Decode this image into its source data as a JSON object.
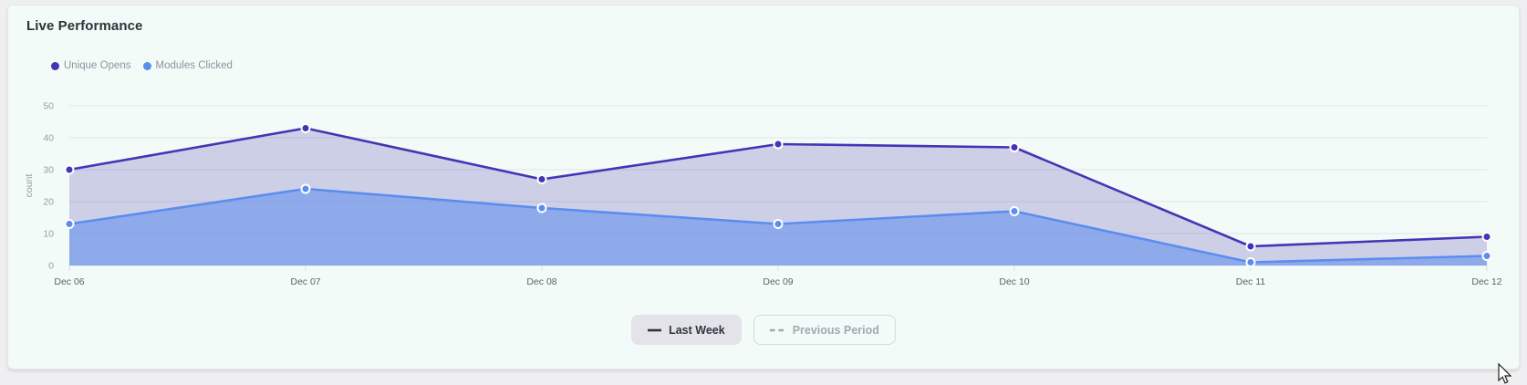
{
  "card": {
    "title": "Live Performance"
  },
  "chart_data": {
    "type": "area",
    "title": "Live Performance",
    "x": [
      "Dec 06",
      "Dec 07",
      "Dec 08",
      "Dec 09",
      "Dec 10",
      "Dec 11",
      "Dec 12"
    ],
    "series": [
      {
        "name": "Unique Opens",
        "color": "#4733b5",
        "fill": "rgba(72,52,176,0.22)",
        "values": [
          30,
          43,
          27,
          38,
          37,
          6,
          9
        ]
      },
      {
        "name": "Modules Clicked",
        "color": "#5b8def",
        "fill": "rgba(91,141,239,0.55)",
        "values": [
          13,
          24,
          18,
          13,
          17,
          1,
          3
        ]
      }
    ],
    "xlabel": "",
    "ylabel": "count",
    "ylim": [
      0,
      50
    ],
    "yticks": [
      0,
      10,
      20,
      30,
      40,
      50
    ],
    "grid": true,
    "legend_position": "top-left",
    "grid_color": "#e2e6ec",
    "tick_color": "#d9dce3",
    "axis_text_color": "#979da8",
    "x_text_color": "#5e636b"
  },
  "legend": {
    "items": [
      {
        "label": "Unique Opens"
      },
      {
        "label": "Modules Clicked"
      }
    ]
  },
  "controls": {
    "last_week_label": "Last Week",
    "previous_period_label": "Previous Period"
  }
}
